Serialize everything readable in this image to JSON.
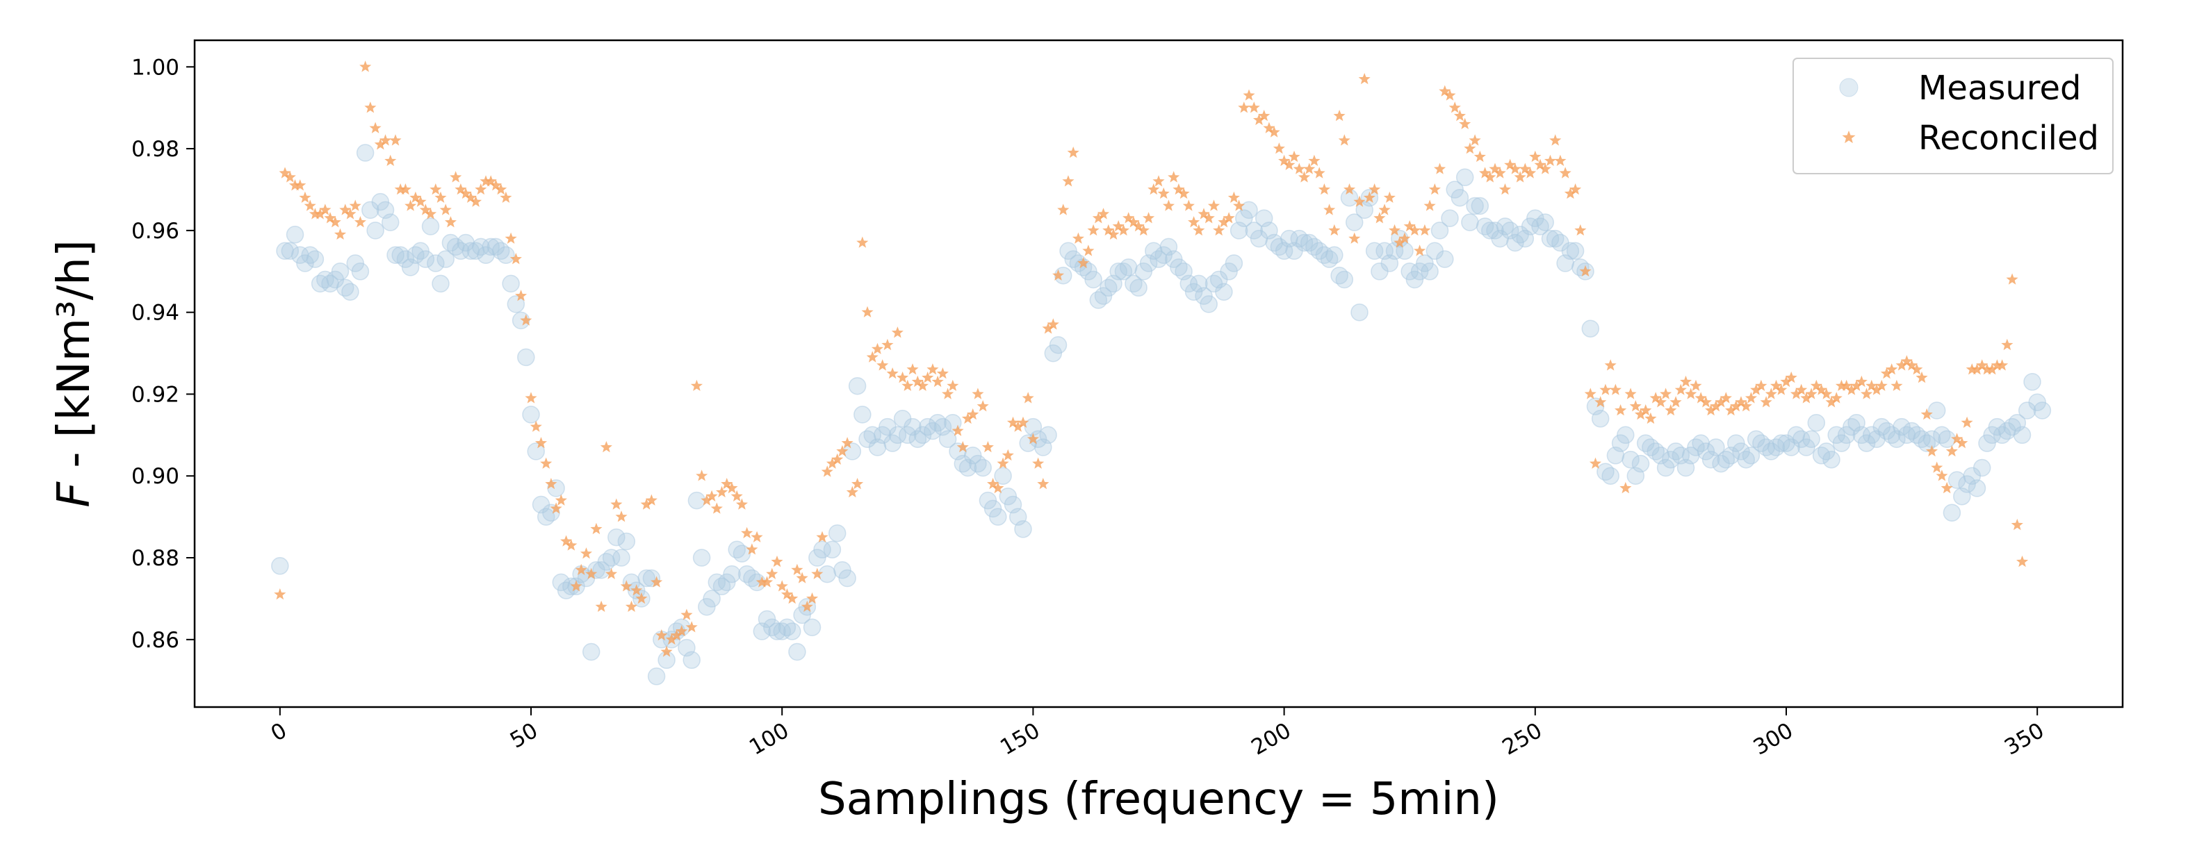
{
  "chart_data": {
    "type": "scatter",
    "title": "",
    "xlabel": "Samplings (frequency = 5min)",
    "ylabel_var": "F",
    "ylabel_rest": " - [kNm³/h]",
    "xlim": [
      -17,
      367
    ],
    "ylim": [
      0.8435,
      1.0065
    ],
    "xticks": [
      0,
      50,
      100,
      150,
      200,
      250,
      300,
      350
    ],
    "xtick_labels": [
      "0",
      "50",
      "100",
      "150",
      "200",
      "250",
      "300",
      "350"
    ],
    "yticks": [
      0.86,
      0.88,
      0.9,
      0.92,
      0.94,
      0.96,
      0.98,
      1.0
    ],
    "ytick_labels": [
      "0.86",
      "0.88",
      "0.90",
      "0.92",
      "0.94",
      "0.96",
      "0.98",
      "1.00"
    ],
    "legend_position": "upper right",
    "colors": {
      "measured": "#aac8e0",
      "reconciled": "#f5a15c",
      "axis": "#000000"
    },
    "series": [
      {
        "name": "Measured",
        "marker": "circle",
        "values": [
          0.878,
          0.955,
          0.955,
          0.959,
          0.954,
          0.952,
          0.954,
          0.953,
          0.947,
          0.948,
          0.947,
          0.948,
          0.95,
          0.946,
          0.945,
          0.952,
          0.95,
          0.979,
          0.965,
          0.96,
          0.967,
          0.965,
          0.962,
          0.954,
          0.954,
          0.953,
          0.951,
          0.954,
          0.955,
          0.953,
          0.961,
          0.952,
          0.947,
          0.953,
          0.957,
          0.956,
          0.955,
          0.957,
          0.955,
          0.955,
          0.956,
          0.954,
          0.956,
          0.956,
          0.955,
          0.954,
          0.947,
          0.942,
          0.938,
          0.929,
          0.915,
          0.906,
          0.893,
          0.89,
          0.891,
          0.897,
          0.874,
          0.872,
          0.873,
          0.873,
          0.876,
          0.875,
          0.857,
          0.877,
          0.877,
          0.879,
          0.88,
          0.885,
          0.88,
          0.884,
          0.874,
          0.872,
          0.87,
          0.875,
          0.875,
          0.851,
          0.86,
          0.855,
          0.86,
          0.862,
          0.863,
          0.858,
          0.855,
          0.894,
          0.88,
          0.868,
          0.87,
          0.874,
          0.873,
          0.874,
          0.876,
          0.882,
          0.881,
          0.876,
          0.875,
          0.874,
          0.862,
          0.865,
          0.863,
          0.862,
          0.862,
          0.863,
          0.862,
          0.857,
          0.866,
          0.868,
          0.863,
          0.88,
          0.882,
          0.876,
          0.882,
          0.886,
          0.877,
          0.875,
          0.906,
          0.922,
          0.915,
          0.909,
          0.91,
          0.907,
          0.91,
          0.912,
          0.908,
          0.91,
          0.914,
          0.91,
          0.912,
          0.909,
          0.91,
          0.912,
          0.911,
          0.913,
          0.912,
          0.909,
          0.913,
          0.906,
          0.903,
          0.902,
          0.905,
          0.903,
          0.902,
          0.894,
          0.892,
          0.89,
          0.9,
          0.895,
          0.893,
          0.89,
          0.887,
          0.908,
          0.912,
          0.909,
          0.907,
          0.91,
          0.93,
          0.932,
          0.949,
          0.955,
          0.953,
          0.952,
          0.951,
          0.95,
          0.948,
          0.943,
          0.944,
          0.946,
          0.947,
          0.95,
          0.95,
          0.951,
          0.947,
          0.946,
          0.95,
          0.952,
          0.955,
          0.953,
          0.954,
          0.956,
          0.953,
          0.951,
          0.95,
          0.947,
          0.945,
          0.947,
          0.944,
          0.942,
          0.947,
          0.948,
          0.945,
          0.95,
          0.952,
          0.96,
          0.963,
          0.965,
          0.96,
          0.958,
          0.963,
          0.96,
          0.957,
          0.956,
          0.955,
          0.958,
          0.955,
          0.958,
          0.957,
          0.957,
          0.956,
          0.955,
          0.954,
          0.953,
          0.954,
          0.949,
          0.948,
          0.968,
          0.962,
          0.94,
          0.965,
          0.968,
          0.955,
          0.95,
          0.955,
          0.952,
          0.955,
          0.958,
          0.955,
          0.95,
          0.948,
          0.95,
          0.952,
          0.95,
          0.955,
          0.96,
          0.953,
          0.963,
          0.97,
          0.968,
          0.973,
          0.962,
          0.966,
          0.966,
          0.961,
          0.96,
          0.96,
          0.958,
          0.961,
          0.96,
          0.957,
          0.959,
          0.958,
          0.961,
          0.963,
          0.961,
          0.962,
          0.958,
          0.958,
          0.957,
          0.952,
          0.955,
          0.955,
          0.951,
          0.95,
          0.936,
          0.917,
          0.914,
          0.901,
          0.9,
          0.905,
          0.908,
          0.91,
          0.904,
          0.9,
          0.903,
          0.908,
          0.907,
          0.906,
          0.905,
          0.902,
          0.904,
          0.906,
          0.905,
          0.902,
          0.905,
          0.907,
          0.908,
          0.906,
          0.904,
          0.907,
          0.903,
          0.904,
          0.905,
          0.908,
          0.906,
          0.904,
          0.905,
          0.909,
          0.908,
          0.907,
          0.906,
          0.907,
          0.908,
          0.908,
          0.907,
          0.91,
          0.909,
          0.907,
          0.909,
          0.913,
          0.905,
          0.906,
          0.904,
          0.91,
          0.908,
          0.91,
          0.912,
          0.913,
          0.91,
          0.908,
          0.91,
          0.909,
          0.912,
          0.911,
          0.91,
          0.909,
          0.912,
          0.91,
          0.911,
          0.91,
          0.909,
          0.908,
          0.909,
          0.916,
          0.91,
          0.909,
          0.891,
          0.899,
          0.895,
          0.898,
          0.9,
          0.897,
          0.902,
          0.908,
          0.91,
          0.912,
          0.91,
          0.911,
          0.912,
          0.913,
          0.91,
          0.916,
          0.923,
          0.918,
          0.916
        ]
      },
      {
        "name": "Reconciled",
        "marker": "star",
        "values": [
          0.871,
          0.974,
          0.973,
          0.971,
          0.971,
          0.968,
          0.966,
          0.964,
          0.964,
          0.965,
          0.963,
          0.962,
          0.959,
          0.965,
          0.964,
          0.966,
          0.962,
          1.0,
          0.99,
          0.985,
          0.981,
          0.982,
          0.977,
          0.982,
          0.97,
          0.97,
          0.966,
          0.968,
          0.967,
          0.965,
          0.964,
          0.97,
          0.968,
          0.965,
          0.962,
          0.973,
          0.97,
          0.969,
          0.968,
          0.967,
          0.97,
          0.972,
          0.972,
          0.971,
          0.97,
          0.968,
          0.958,
          0.953,
          0.944,
          0.938,
          0.919,
          0.912,
          0.908,
          0.903,
          0.898,
          0.892,
          0.894,
          0.884,
          0.883,
          0.873,
          0.877,
          0.881,
          0.876,
          0.887,
          0.868,
          0.907,
          0.876,
          0.893,
          0.89,
          0.873,
          0.868,
          0.872,
          0.87,
          0.893,
          0.894,
          0.874,
          0.861,
          0.857,
          0.86,
          0.861,
          0.862,
          0.866,
          0.863,
          0.922,
          0.9,
          0.894,
          0.895,
          0.892,
          0.896,
          0.898,
          0.897,
          0.895,
          0.893,
          0.886,
          0.882,
          0.885,
          0.874,
          0.874,
          0.876,
          0.879,
          0.873,
          0.871,
          0.87,
          0.877,
          0.875,
          0.868,
          0.87,
          0.876,
          0.885,
          0.901,
          0.903,
          0.904,
          0.906,
          0.908,
          0.896,
          0.898,
          0.957,
          0.94,
          0.929,
          0.931,
          0.927,
          0.932,
          0.925,
          0.935,
          0.924,
          0.922,
          0.926,
          0.923,
          0.922,
          0.924,
          0.926,
          0.923,
          0.925,
          0.92,
          0.922,
          0.911,
          0.907,
          0.914,
          0.915,
          0.92,
          0.917,
          0.907,
          0.898,
          0.897,
          0.903,
          0.905,
          0.913,
          0.912,
          0.913,
          0.919,
          0.909,
          0.903,
          0.898,
          0.936,
          0.937,
          0.949,
          0.965,
          0.972,
          0.979,
          0.958,
          0.952,
          0.955,
          0.96,
          0.963,
          0.964,
          0.96,
          0.959,
          0.961,
          0.96,
          0.963,
          0.962,
          0.961,
          0.96,
          0.963,
          0.97,
          0.972,
          0.969,
          0.966,
          0.973,
          0.97,
          0.969,
          0.966,
          0.962,
          0.96,
          0.964,
          0.963,
          0.966,
          0.96,
          0.962,
          0.963,
          0.968,
          0.966,
          0.99,
          0.993,
          0.99,
          0.987,
          0.988,
          0.985,
          0.984,
          0.98,
          0.977,
          0.976,
          0.978,
          0.975,
          0.973,
          0.975,
          0.977,
          0.974,
          0.97,
          0.965,
          0.96,
          0.988,
          0.982,
          0.97,
          0.958,
          0.967,
          0.997,
          0.968,
          0.97,
          0.963,
          0.965,
          0.968,
          0.96,
          0.957,
          0.958,
          0.961,
          0.96,
          0.955,
          0.96,
          0.966,
          0.97,
          0.975,
          0.994,
          0.993,
          0.99,
          0.988,
          0.986,
          0.98,
          0.982,
          0.978,
          0.974,
          0.973,
          0.975,
          0.974,
          0.97,
          0.976,
          0.975,
          0.973,
          0.975,
          0.974,
          0.978,
          0.976,
          0.975,
          0.977,
          0.982,
          0.977,
          0.974,
          0.969,
          0.97,
          0.96,
          0.95,
          0.92,
          0.903,
          0.918,
          0.921,
          0.927,
          0.921,
          0.916,
          0.897,
          0.92,
          0.917,
          0.915,
          0.916,
          0.914,
          0.919,
          0.918,
          0.92,
          0.916,
          0.918,
          0.921,
          0.923,
          0.92,
          0.922,
          0.919,
          0.918,
          0.916,
          0.917,
          0.918,
          0.919,
          0.916,
          0.917,
          0.918,
          0.917,
          0.919,
          0.921,
          0.922,
          0.918,
          0.92,
          0.922,
          0.921,
          0.923,
          0.924,
          0.92,
          0.921,
          0.919,
          0.92,
          0.922,
          0.921,
          0.92,
          0.918,
          0.919,
          0.922,
          0.922,
          0.921,
          0.922,
          0.923,
          0.92,
          0.922,
          0.921,
          0.922,
          0.925,
          0.926,
          0.922,
          0.927,
          0.928,
          0.927,
          0.926,
          0.924,
          0.915,
          0.906,
          0.902,
          0.9,
          0.897,
          0.906,
          0.909,
          0.908,
          0.913,
          0.926,
          0.926,
          0.927,
          0.926,
          0.926,
          0.927,
          0.927,
          0.932,
          0.948,
          0.888,
          0.879
        ]
      }
    ]
  }
}
